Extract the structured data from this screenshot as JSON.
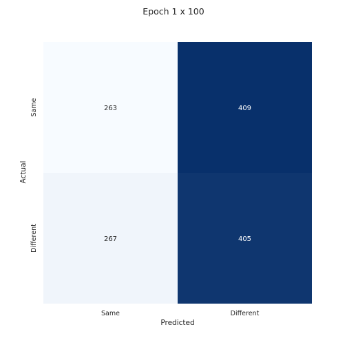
{
  "chart_data": {
    "type": "heatmap",
    "title": "Epoch 1 x 100",
    "xlabel": "Predicted",
    "ylabel": "Actual",
    "x_categories": [
      "Same",
      "Different"
    ],
    "y_categories": [
      "Same",
      "Different"
    ],
    "values": [
      [
        263,
        409
      ],
      [
        267,
        405
      ]
    ],
    "colormap": "Blues",
    "colors": {
      "cell_low": "#f7fbff",
      "cell_high": "#08306b",
      "text_on_light": "#262626",
      "text_on_dark": "#ffffff"
    },
    "colorbar": false,
    "grid": false
  }
}
